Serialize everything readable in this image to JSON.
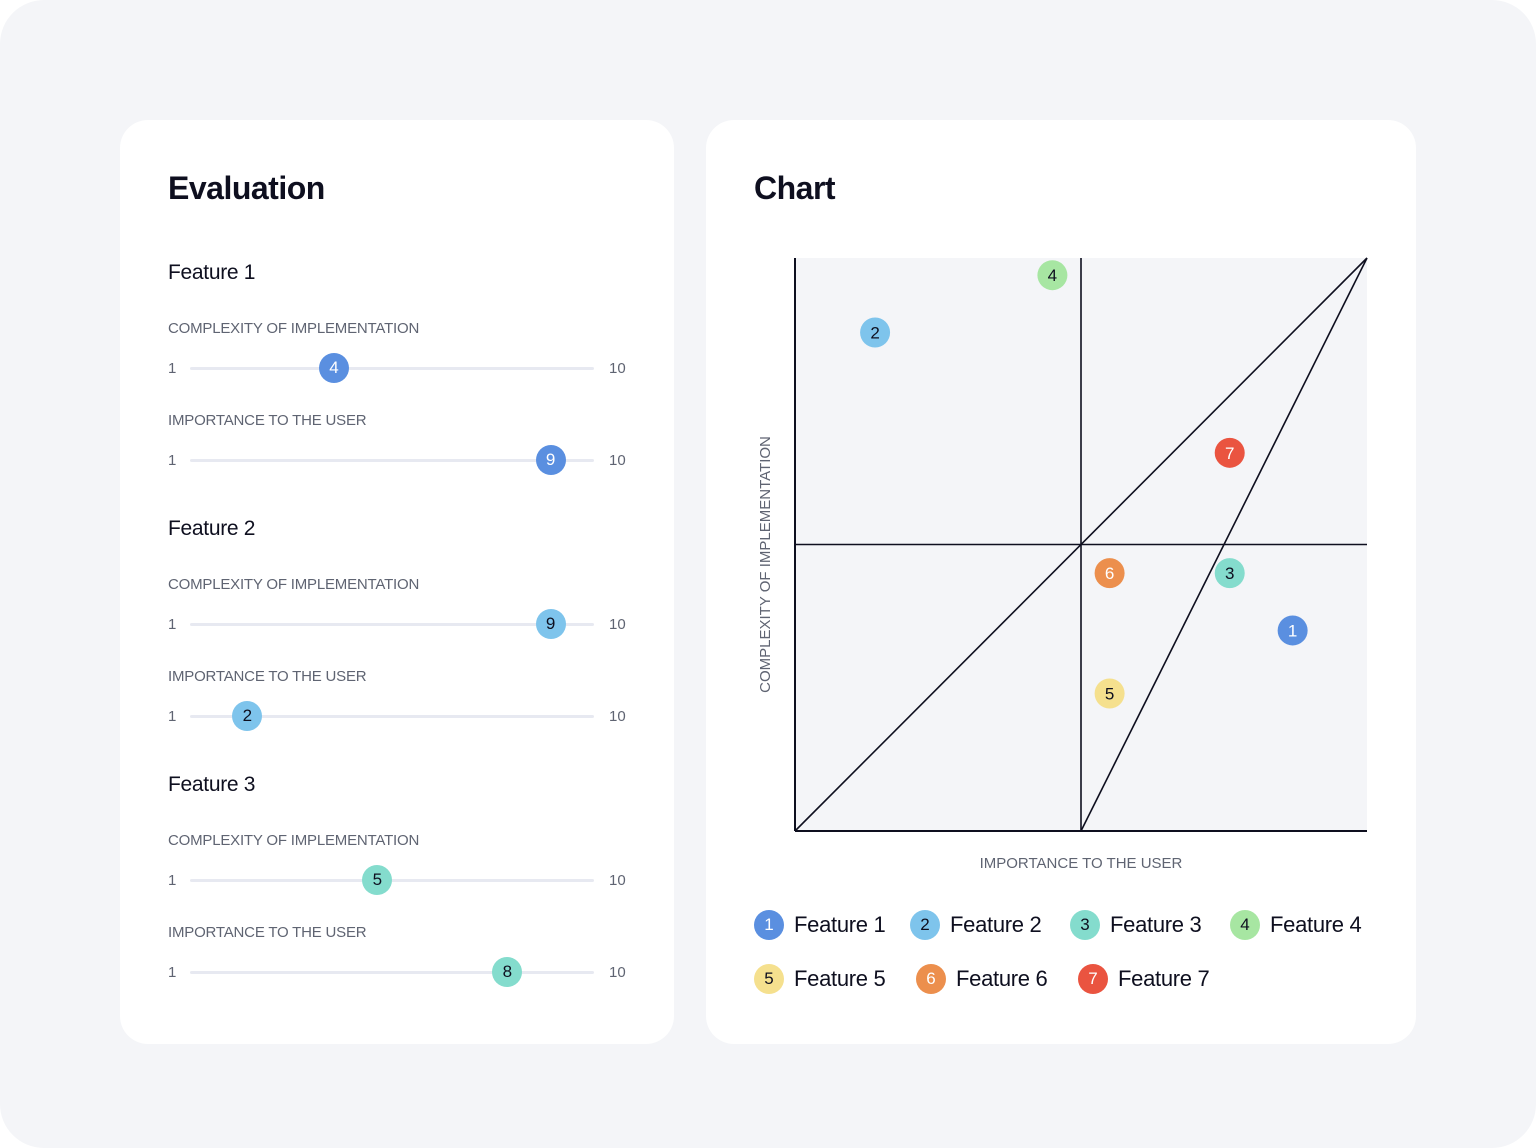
{
  "evaluation": {
    "title": "Evaluation",
    "slider_min": "1",
    "slider_max": "10",
    "features": [
      {
        "name": "Feature 1",
        "color": "#5a8fe0",
        "text_color": "#ffffff",
        "complexity_label": "COMPLEXITY OF IMPLEMENTATION",
        "complexity": 4,
        "importance_label": "IMPORTANCE TO THE USER",
        "importance": 9
      },
      {
        "name": "Feature 2",
        "color": "#7ec4ec",
        "text_color": "#0e0f1f",
        "complexity_label": "COMPLEXITY OF IMPLEMENTATION",
        "complexity": 9,
        "importance_label": "IMPORTANCE TO THE USER",
        "importance": 2
      },
      {
        "name": "Feature 3",
        "color": "#84dccd",
        "text_color": "#0e0f1f",
        "complexity_label": "COMPLEXITY OF IMPLEMENTATION",
        "complexity": 5,
        "importance_label": "IMPORTANCE TO THE USER",
        "importance": 8
      }
    ]
  },
  "chart": {
    "title": "Chart",
    "ylabel": "COMPLEXITY OF IMPLEMENTATION",
    "xlabel": "IMPORTANCE TO THE USER"
  },
  "chart_data": {
    "type": "scatter",
    "xlabel": "IMPORTANCE TO THE USER",
    "ylabel": "COMPLEXITY OF IMPLEMENTATION",
    "xlim": [
      0,
      10
    ],
    "ylim": [
      0,
      10
    ],
    "grid": false,
    "quadrant_divider": {
      "x": 5,
      "y": 5
    },
    "diagonals": [
      {
        "from": [
          0,
          0
        ],
        "to": [
          10,
          10
        ]
      },
      {
        "from": [
          5,
          0
        ],
        "to": [
          10,
          10
        ]
      }
    ],
    "points": [
      {
        "label": "1",
        "name": "Feature 1",
        "x": 8.7,
        "y": 3.5,
        "color": "#5a8fe0",
        "text_color": "#ffffff"
      },
      {
        "label": "2",
        "name": "Feature 2",
        "x": 1.4,
        "y": 8.7,
        "color": "#7ec4ec",
        "text_color": "#0e0f1f"
      },
      {
        "label": "3",
        "name": "Feature 3",
        "x": 7.6,
        "y": 4.5,
        "color": "#84dccd",
        "text_color": "#0e0f1f"
      },
      {
        "label": "4",
        "name": "Feature 4",
        "x": 4.5,
        "y": 9.7,
        "color": "#a7e6a2",
        "text_color": "#0e0f1f"
      },
      {
        "label": "5",
        "name": "Feature 5",
        "x": 5.5,
        "y": 2.4,
        "color": "#f5e08e",
        "text_color": "#0e0f1f"
      },
      {
        "label": "6",
        "name": "Feature 6",
        "x": 5.5,
        "y": 4.5,
        "color": "#ec8f4d",
        "text_color": "#ffffff"
      },
      {
        "label": "7",
        "name": "Feature 7",
        "x": 7.6,
        "y": 6.6,
        "color": "#ea5440",
        "text_color": "#ffffff"
      }
    ]
  },
  "legend": [
    {
      "num": "1",
      "label": "Feature 1",
      "color": "#5a8fe0",
      "text_color": "#ffffff"
    },
    {
      "num": "2",
      "label": "Feature 2",
      "color": "#7ec4ec",
      "text_color": "#0e0f1f"
    },
    {
      "num": "3",
      "label": "Feature 3",
      "color": "#84dccd",
      "text_color": "#0e0f1f"
    },
    {
      "num": "4",
      "label": "Feature 4",
      "color": "#a7e6a2",
      "text_color": "#0e0f1f"
    },
    {
      "num": "5",
      "label": "Feature 5",
      "color": "#f5e08e",
      "text_color": "#0e0f1f"
    },
    {
      "num": "6",
      "label": "Feature 6",
      "color": "#ec8f4d",
      "text_color": "#ffffff"
    },
    {
      "num": "7",
      "label": "Feature 7",
      "color": "#ea5440",
      "text_color": "#ffffff"
    }
  ]
}
